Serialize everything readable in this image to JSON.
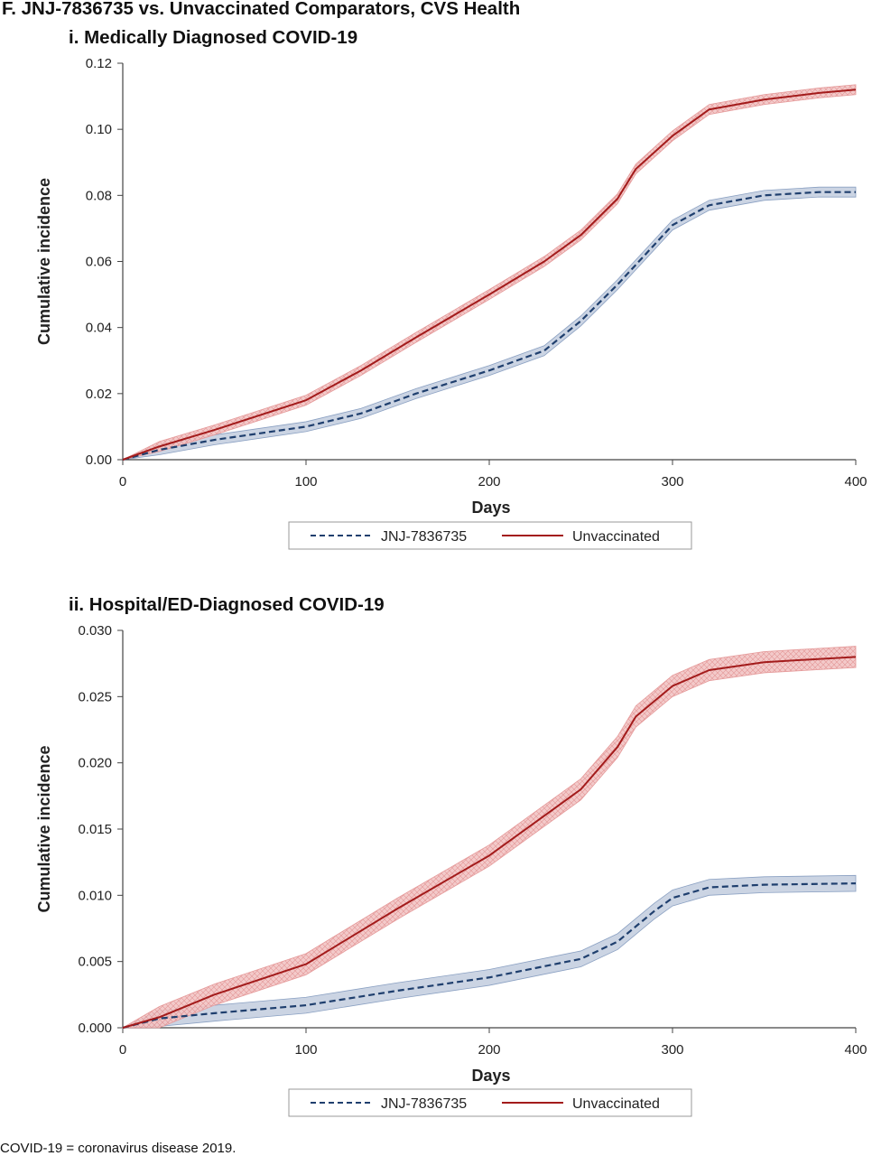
{
  "figure": {
    "title": "F. JNJ-7836735 vs. Unvaccinated Comparators, CVS Health",
    "footnote": "COVID-19 = coronavirus disease 2019."
  },
  "colors": {
    "vaccinated": "#1f3f6e",
    "vaccinated_band": "#b9c6da",
    "unvaccinated": "#a31b1b",
    "unvaccinated_band": "#f2c4c4"
  },
  "chart_data": [
    {
      "type": "line",
      "title": "i. Medically Diagnosed COVID-19",
      "xlabel": "Days",
      "ylabel": "Cumulative incidence",
      "xlim": [
        0,
        400
      ],
      "ylim": [
        0,
        0.12
      ],
      "xticks": [
        "0",
        "100",
        "200",
        "300",
        "400"
      ],
      "yticks": [
        "0.00",
        "0.02",
        "0.04",
        "0.06",
        "0.08",
        "0.10",
        "0.12"
      ],
      "grid": false,
      "legend": "bottom",
      "series": [
        {
          "name": "JNJ-7836735",
          "style": "dashed",
          "x": [
            0,
            20,
            50,
            100,
            130,
            160,
            200,
            230,
            250,
            270,
            290,
            300,
            320,
            350,
            380,
            400
          ],
          "values": [
            0,
            0.003,
            0.006,
            0.01,
            0.014,
            0.02,
            0.027,
            0.033,
            0.042,
            0.053,
            0.065,
            0.071,
            0.077,
            0.08,
            0.081,
            0.081
          ],
          "ci_halfwidth": 0.0015
        },
        {
          "name": "Unvaccinated",
          "style": "solid",
          "x": [
            0,
            20,
            50,
            100,
            130,
            160,
            200,
            230,
            250,
            270,
            280,
            300,
            320,
            350,
            380,
            400
          ],
          "values": [
            0,
            0.004,
            0.009,
            0.018,
            0.027,
            0.037,
            0.05,
            0.06,
            0.068,
            0.079,
            0.088,
            0.098,
            0.106,
            0.109,
            0.111,
            0.112
          ],
          "ci_halfwidth": 0.0015
        }
      ]
    },
    {
      "type": "line",
      "title": "ii. Hospital/ED-Diagnosed COVID-19",
      "xlabel": "Days",
      "ylabel": "Cumulative incidence",
      "xlim": [
        0,
        400
      ],
      "ylim": [
        0,
        0.03
      ],
      "xticks": [
        "0",
        "100",
        "200",
        "300",
        "400"
      ],
      "yticks": [
        "0.000",
        "0.005",
        "0.010",
        "0.015",
        "0.020",
        "0.025",
        "0.030"
      ],
      "grid": false,
      "legend": "bottom",
      "series": [
        {
          "name": "JNJ-7836735",
          "style": "dashed",
          "x": [
            0,
            20,
            50,
            100,
            150,
            200,
            250,
            270,
            290,
            300,
            320,
            350,
            400
          ],
          "values": [
            0,
            0.0007,
            0.0011,
            0.0017,
            0.0028,
            0.0038,
            0.0052,
            0.0065,
            0.0088,
            0.0098,
            0.0106,
            0.0108,
            0.0109
          ],
          "ci_halfwidth": 0.0006
        },
        {
          "name": "Unvaccinated",
          "style": "solid",
          "x": [
            0,
            20,
            50,
            100,
            150,
            200,
            250,
            270,
            280,
            300,
            320,
            350,
            400
          ],
          "values": [
            0,
            0.0008,
            0.0025,
            0.0048,
            0.009,
            0.013,
            0.018,
            0.0212,
            0.0235,
            0.0258,
            0.027,
            0.0276,
            0.028
          ],
          "ci_halfwidth": 0.0008
        }
      ]
    }
  ]
}
